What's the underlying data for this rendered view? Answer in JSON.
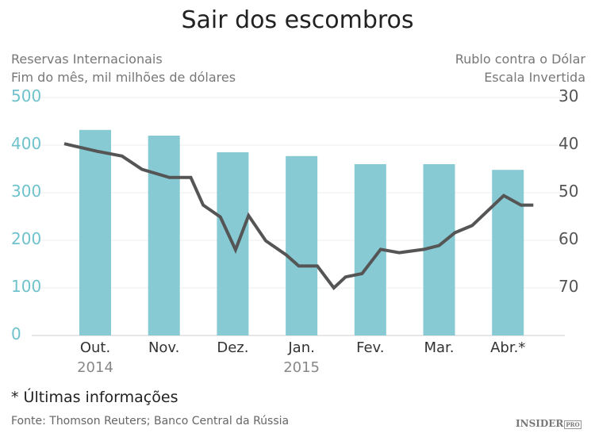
{
  "title": "Sair dos escombros",
  "left_axis": {
    "label1": "Reservas Internacionais",
    "label2": "Fim do mês, mil milhões de dólares",
    "ticks": [
      "0",
      "100",
      "200",
      "300",
      "400",
      "500"
    ]
  },
  "right_axis": {
    "label1": "Rublo contra o Dólar",
    "label2": "Escala Invertida",
    "ticks": [
      "30",
      "40",
      "50",
      "60",
      "70"
    ]
  },
  "note": "*  Últimas informações",
  "source": "Fonte: Thomson Reuters; Banco Central da Rússia",
  "logo": "INSIDER PRO",
  "colors": {
    "bar": "#87cad3",
    "line": "#555555",
    "left_tick": "#6fc2cc"
  },
  "chart_data": {
    "type": "bar+line",
    "title": "Sair dos escombros",
    "categories": [
      "Out.",
      "Nov.",
      "Dez.",
      "Jan.",
      "Fev.",
      "Mar.",
      "Abr.*"
    ],
    "years": [
      {
        "label": "2014",
        "at": 0
      },
      {
        "label": "2015",
        "at": 3
      }
    ],
    "bars": {
      "name": "Reservas Internacionais (mil milhões de dólares)",
      "values": [
        432,
        420,
        385,
        377,
        360,
        360,
        348
      ],
      "ylim": [
        0,
        500
      ]
    },
    "line": {
      "name": "Rublo contra o Dólar (escala invertida)",
      "ylim": [
        30,
        80
      ],
      "inverted": true,
      "x": [
        -0.45,
        0.03,
        0.39,
        0.68,
        1.08,
        1.39,
        1.57,
        1.82,
        2.04,
        2.23,
        2.48,
        2.78,
        2.96,
        3.23,
        3.47,
        3.64,
        3.88,
        4.15,
        4.42,
        4.78,
        5.0,
        5.23,
        5.48,
        5.94,
        6.19,
        6.37
      ],
      "y": [
        39.7,
        41.3,
        42.3,
        45.1,
        46.8,
        46.8,
        52.6,
        55.1,
        62.0,
        54.8,
        60.1,
        63.1,
        65.4,
        65.4,
        70.0,
        67.7,
        67.0,
        61.9,
        62.6,
        61.9,
        61.1,
        58.4,
        56.9,
        50.6,
        52.6,
        52.6
      ]
    }
  }
}
